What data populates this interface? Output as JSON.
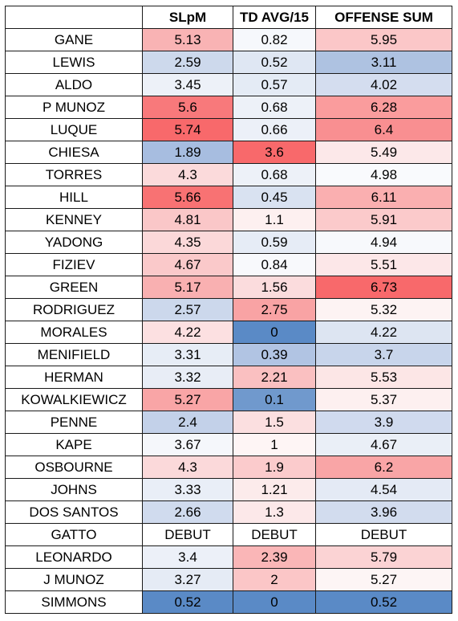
{
  "headers": [
    "",
    "SLpM",
    "TD AVG/15",
    "OFFENSE SUM"
  ],
  "rows": [
    {
      "name": "GANE",
      "slpm": "5.13",
      "td": "0.82",
      "sum": "5.95",
      "c1": "#f9b3b4",
      "c2": "#f6f8fc",
      "c3": "#fbc7c8"
    },
    {
      "name": "LEWIS",
      "slpm": "2.59",
      "td": "0.52",
      "sum": "3.11",
      "c1": "#cdd9ec",
      "c2": "#dfe7f3",
      "c3": "#aec2e1"
    },
    {
      "name": "ALDO",
      "slpm": "3.45",
      "td": "0.57",
      "sum": "4.02",
      "c1": "#edf1f8",
      "c2": "#e4ebf5",
      "c3": "#d4ddef"
    },
    {
      "name": "P MUNOZ",
      "slpm": "5.6",
      "td": "0.68",
      "sum": "6.28",
      "c1": "#f8797b",
      "c2": "#edf1f8",
      "c3": "#fa9c9d"
    },
    {
      "name": "LUQUE",
      "slpm": "5.74",
      "td": "0.66",
      "sum": "6.4",
      "c1": "#f8696b",
      "c2": "#ecf0f8",
      "c3": "#f98f91"
    },
    {
      "name": "CHIESA",
      "slpm": "1.89",
      "td": "3.6",
      "sum": "5.49",
      "c1": "#a7bde0",
      "c2": "#f8696b",
      "c3": "#fce8e9"
    },
    {
      "name": "TORRES",
      "slpm": "4.3",
      "td": "0.68",
      "sum": "4.98",
      "c1": "#fbdadb",
      "c2": "#edf1f8",
      "c3": "#f9fafd"
    },
    {
      "name": "HILL",
      "slpm": "5.66",
      "td": "0.45",
      "sum": "6.11",
      "c1": "#f87273",
      "c2": "#d9e2f1",
      "c3": "#faafb0"
    },
    {
      "name": "KENNEY",
      "slpm": "4.81",
      "td": "1.1",
      "sum": "5.91",
      "c1": "#fac7c8",
      "c2": "#fdf0f0",
      "c3": "#fbcacb"
    },
    {
      "name": "YADONG",
      "slpm": "4.35",
      "td": "0.59",
      "sum": "4.94",
      "c1": "#fbd8d9",
      "c2": "#e6ecf6",
      "c3": "#f7f9fc"
    },
    {
      "name": "FIZIEV",
      "slpm": "4.67",
      "td": "0.84",
      "sum": "5.51",
      "c1": "#fac9ca",
      "c2": "#f8f9fc",
      "c3": "#fce7e8"
    },
    {
      "name": "GREEN",
      "slpm": "5.17",
      "td": "1.56",
      "sum": "6.73",
      "c1": "#f9b0b1",
      "c2": "#fbdcdd",
      "c3": "#f8696b"
    },
    {
      "name": "RODRIGUEZ",
      "slpm": "2.57",
      "td": "2.75",
      "sum": "5.32",
      "c1": "#ccd8ec",
      "c2": "#f9a3a4",
      "c3": "#fdf3f3"
    },
    {
      "name": "MORALES",
      "slpm": "4.22",
      "td": "0",
      "sum": "4.22",
      "c1": "#fce0e1",
      "c2": "#5a8ac6",
      "c3": "#dde5f2"
    },
    {
      "name": "MENIFIELD",
      "slpm": "3.31",
      "td": "0.39",
      "sum": "3.7",
      "c1": "#e7edf6",
      "c2": "#b1c4e3",
      "c3": "#c8d5eb"
    },
    {
      "name": "HERMAN",
      "slpm": "3.32",
      "td": "2.21",
      "sum": "5.53",
      "c1": "#e8edf6",
      "c2": "#fac0c1",
      "c3": "#fce6e6"
    },
    {
      "name": "KOWALKIEWICZ",
      "slpm": "5.27",
      "td": "0.1",
      "sum": "5.37",
      "c1": "#f9a5a6",
      "c2": "#7099cd",
      "c3": "#fdf0f0"
    },
    {
      "name": "PENNE",
      "slpm": "2.4",
      "td": "1.5",
      "sum": "3.9",
      "c1": "#c3d1e9",
      "c2": "#fbdfe0",
      "c3": "#d0daee"
    },
    {
      "name": "KAPE",
      "slpm": "3.67",
      "td": "1",
      "sum": "4.67",
      "c1": "#f5f7fb",
      "c2": "#fef5f5",
      "c3": "#eaeff7"
    },
    {
      "name": "OSBOURNE",
      "slpm": "4.3",
      "td": "1.9",
      "sum": "6.2",
      "c1": "#fbd9da",
      "c2": "#fbcbcc",
      "c3": "#f9a5a6"
    },
    {
      "name": "JOHNS",
      "slpm": "3.33",
      "td": "1.21",
      "sum": "4.54",
      "c1": "#e9eef7",
      "c2": "#fcebeb",
      "c3": "#e4eaf5"
    },
    {
      "name": "DOS SANTOS",
      "slpm": "2.66",
      "td": "1.3",
      "sum": "3.96",
      "c1": "#d0dbee",
      "c2": "#fce8e9",
      "c3": "#d2dcee"
    },
    {
      "name": "GATTO",
      "slpm": "DEBUT",
      "td": "DEBUT",
      "sum": "DEBUT",
      "c1": "#ffffff",
      "c2": "#ffffff",
      "c3": "#ffffff"
    },
    {
      "name": "LEONARDO",
      "slpm": "3.4",
      "td": "2.39",
      "sum": "5.79",
      "c1": "#ecf0f8",
      "c2": "#fab6b7",
      "c3": "#fbd3d4"
    },
    {
      "name": "J MUNOZ",
      "slpm": "3.27",
      "td": "2",
      "sum": "5.27",
      "c1": "#e5ebf5",
      "c2": "#fbc6c7",
      "c3": "#fdf5f5"
    },
    {
      "name": "SIMMONS",
      "slpm": "0.52",
      "td": "0",
      "sum": "0.52",
      "c1": "#5a8ac6",
      "c2": "#5a8ac6",
      "c3": "#5a8ac6"
    }
  ]
}
